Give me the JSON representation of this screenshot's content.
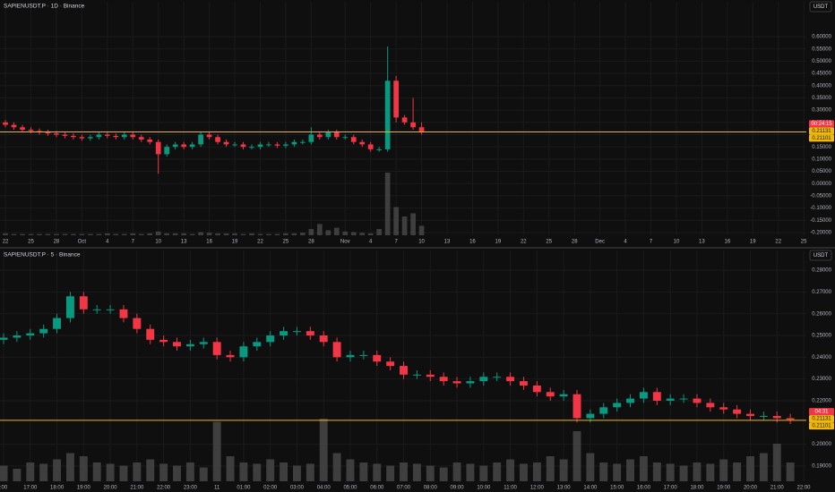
{
  "chart_data": [
    {
      "type": "candlestick",
      "title": "SAPIENUSDT.P · 1D · Binance",
      "currency": "USDT",
      "up_color": "#089981",
      "down_color": "#f23645",
      "volume_color": "#4a4a4a",
      "grid": true,
      "x": [
        0,
        1,
        2,
        3,
        4,
        5,
        6,
        7,
        8,
        9,
        10,
        11,
        12,
        13,
        14,
        15,
        16,
        17,
        18,
        19,
        20,
        21,
        22,
        23,
        24,
        25,
        26,
        27,
        28,
        29,
        30,
        31,
        32,
        33,
        34,
        35,
        36,
        37,
        38,
        39,
        40,
        41,
        42,
        43,
        44,
        45,
        46,
        47,
        48,
        49
      ],
      "open": [
        0.25,
        0.24,
        0.23,
        0.22,
        0.215,
        0.21,
        0.205,
        0.2,
        0.195,
        0.19,
        0.185,
        0.19,
        0.2,
        0.195,
        0.19,
        0.2,
        0.19,
        0.18,
        0.17,
        0.12,
        0.15,
        0.16,
        0.15,
        0.16,
        0.2,
        0.19,
        0.17,
        0.16,
        0.16,
        0.15,
        0.15,
        0.16,
        0.16,
        0.155,
        0.16,
        0.17,
        0.17,
        0.2,
        0.19,
        0.21,
        0.19,
        0.19,
        0.17,
        0.16,
        0.14,
        0.14,
        0.42,
        0.27,
        0.25,
        0.23
      ],
      "high": [
        0.26,
        0.25,
        0.24,
        0.23,
        0.225,
        0.22,
        0.215,
        0.21,
        0.205,
        0.2,
        0.2,
        0.21,
        0.21,
        0.205,
        0.21,
        0.21,
        0.2,
        0.19,
        0.18,
        0.16,
        0.17,
        0.17,
        0.17,
        0.21,
        0.21,
        0.2,
        0.18,
        0.17,
        0.17,
        0.16,
        0.17,
        0.17,
        0.17,
        0.17,
        0.18,
        0.18,
        0.23,
        0.21,
        0.22,
        0.22,
        0.2,
        0.2,
        0.18,
        0.17,
        0.15,
        0.56,
        0.44,
        0.28,
        0.35,
        0.25
      ],
      "low": [
        0.23,
        0.22,
        0.21,
        0.205,
        0.2,
        0.195,
        0.19,
        0.185,
        0.18,
        0.175,
        0.175,
        0.18,
        0.185,
        0.18,
        0.18,
        0.18,
        0.17,
        0.16,
        0.04,
        0.11,
        0.14,
        0.14,
        0.14,
        0.15,
        0.18,
        0.16,
        0.15,
        0.15,
        0.14,
        0.14,
        0.14,
        0.15,
        0.145,
        0.145,
        0.15,
        0.16,
        0.16,
        0.18,
        0.18,
        0.18,
        0.18,
        0.16,
        0.15,
        0.13,
        0.13,
        0.13,
        0.25,
        0.24,
        0.22,
        0.2
      ],
      "close": [
        0.24,
        0.23,
        0.22,
        0.215,
        0.21,
        0.205,
        0.2,
        0.195,
        0.19,
        0.185,
        0.19,
        0.2,
        0.195,
        0.19,
        0.2,
        0.19,
        0.18,
        0.17,
        0.12,
        0.15,
        0.16,
        0.15,
        0.16,
        0.2,
        0.19,
        0.17,
        0.16,
        0.16,
        0.15,
        0.15,
        0.16,
        0.16,
        0.155,
        0.16,
        0.17,
        0.17,
        0.2,
        0.19,
        0.21,
        0.19,
        0.19,
        0.17,
        0.16,
        0.14,
        0.14,
        0.42,
        0.27,
        0.25,
        0.23,
        0.21
      ],
      "volume": [
        3,
        2,
        2,
        2,
        2,
        2,
        2,
        2,
        2,
        2,
        2,
        2,
        3,
        2,
        2,
        3,
        2,
        3,
        6,
        3,
        3,
        3,
        2,
        5,
        4,
        3,
        3,
        3,
        2,
        3,
        2,
        2,
        2,
        3,
        3,
        4,
        10,
        18,
        8,
        12,
        6,
        5,
        4,
        3,
        10,
        100,
        45,
        30,
        35,
        15
      ],
      "xlim": [
        -0.64,
        94.3
      ],
      "xticks": [
        {
          "value": 0,
          "label": "22"
        },
        {
          "value": 3,
          "label": "25"
        },
        {
          "value": 6,
          "label": "28"
        },
        {
          "value": 9,
          "label": "Oct"
        },
        {
          "value": 12,
          "label": "4"
        },
        {
          "value": 15,
          "label": "7"
        },
        {
          "value": 18,
          "label": "10"
        },
        {
          "value": 21,
          "label": "13"
        },
        {
          "value": 24,
          "label": "16"
        },
        {
          "value": 27,
          "label": "19"
        },
        {
          "value": 30,
          "label": "22"
        },
        {
          "value": 33,
          "label": "25"
        },
        {
          "value": 36,
          "label": "28"
        },
        {
          "value": 40,
          "label": "Nov"
        },
        {
          "value": 43,
          "label": "4"
        },
        {
          "value": 46,
          "label": "7"
        },
        {
          "value": 49,
          "label": "10"
        },
        {
          "value": 52,
          "label": "13"
        },
        {
          "value": 55,
          "label": "16"
        },
        {
          "value": 58,
          "label": "19"
        },
        {
          "value": 61,
          "label": "22"
        },
        {
          "value": 64,
          "label": "25"
        },
        {
          "value": 67,
          "label": "28"
        },
        {
          "value": 70,
          "label": "Dec"
        },
        {
          "value": 73,
          "label": "4"
        },
        {
          "value": 76,
          "label": "7"
        },
        {
          "value": 79,
          "label": "10"
        },
        {
          "value": 82,
          "label": "13"
        },
        {
          "value": 85,
          "label": "16"
        },
        {
          "value": 88,
          "label": "19"
        },
        {
          "value": 91,
          "label": "22"
        },
        {
          "value": 94,
          "label": "25"
        }
      ],
      "ylim": [
        -0.211,
        0.7132
      ],
      "yticks": [
        {
          "value": 0.6,
          "label": "0.60000"
        },
        {
          "value": 0.55,
          "label": "0.55000"
        },
        {
          "value": 0.5,
          "label": "0.50000"
        },
        {
          "value": 0.45,
          "label": "0.45000"
        },
        {
          "value": 0.4,
          "label": "0.40000"
        },
        {
          "value": 0.35,
          "label": "0.35000"
        },
        {
          "value": 0.3,
          "label": "0.30000"
        },
        {
          "value": 0.25,
          "label": "0.25000"
        },
        {
          "value": 0.2,
          "label": "0.20000"
        },
        {
          "value": 0.15,
          "label": "0.15000"
        },
        {
          "value": 0.1,
          "label": "0.10000"
        },
        {
          "value": 0.05,
          "label": "0.05000"
        },
        {
          "value": 0,
          "label": "0.00000"
        },
        {
          "value": -0.05,
          "label": "-0.05000"
        },
        {
          "value": -0.1,
          "label": "-0.10000"
        },
        {
          "value": -0.15,
          "label": "-0.15000"
        },
        {
          "value": -0.2,
          "label": "-0.20000"
        }
      ],
      "countdown": "00:24:15",
      "price_lines": [
        {
          "value": 0.21131,
          "label": "0.21131",
          "color": "#f0b90b"
        },
        {
          "value": 0.21101,
          "label": "0.21101",
          "color": "#f0b90b"
        }
      ]
    },
    {
      "type": "candlestick",
      "title": "SAPIENUSDT.P · 5 · Binance",
      "currency": "USDT",
      "up_color": "#089981",
      "down_color": "#f23645",
      "volume_color": "#4a4a4a",
      "grid": true,
      "x": [
        0,
        0.5,
        1,
        1.5,
        2,
        2.5,
        3,
        3.5,
        4,
        4.5,
        5,
        5.5,
        6,
        6.5,
        7,
        7.5,
        8,
        8.5,
        9,
        9.5,
        10,
        10.5,
        11,
        11.5,
        12,
        12.5,
        13,
        13.5,
        14,
        14.5,
        15,
        15.5,
        16,
        16.5,
        17,
        17.5,
        18,
        18.5,
        19,
        19.5,
        20,
        20.5,
        21,
        21.5,
        22,
        22.5,
        23,
        23.5,
        24,
        24.5,
        25,
        25.5,
        26,
        26.5,
        27,
        27.5,
        28,
        28.5,
        29,
        29.5
      ],
      "open": [
        0.248,
        0.249,
        0.25,
        0.251,
        0.253,
        0.258,
        0.268,
        0.262,
        0.262,
        0.262,
        0.258,
        0.253,
        0.248,
        0.247,
        0.245,
        0.246,
        0.247,
        0.241,
        0.24,
        0.245,
        0.247,
        0.25,
        0.252,
        0.252,
        0.25,
        0.247,
        0.24,
        0.241,
        0.241,
        0.238,
        0.236,
        0.232,
        0.232,
        0.231,
        0.229,
        0.228,
        0.229,
        0.231,
        0.231,
        0.229,
        0.227,
        0.224,
        0.222,
        0.223,
        0.212,
        0.214,
        0.217,
        0.219,
        0.221,
        0.224,
        0.22,
        0.221,
        0.221,
        0.219,
        0.217,
        0.216,
        0.214,
        0.213,
        0.213,
        0.212
      ],
      "high": [
        0.251,
        0.252,
        0.253,
        0.255,
        0.26,
        0.27,
        0.27,
        0.264,
        0.264,
        0.264,
        0.26,
        0.255,
        0.25,
        0.249,
        0.248,
        0.249,
        0.249,
        0.243,
        0.247,
        0.249,
        0.252,
        0.254,
        0.254,
        0.254,
        0.252,
        0.249,
        0.243,
        0.243,
        0.243,
        0.24,
        0.238,
        0.234,
        0.234,
        0.233,
        0.231,
        0.231,
        0.233,
        0.233,
        0.233,
        0.231,
        0.229,
        0.226,
        0.225,
        0.225,
        0.216,
        0.219,
        0.221,
        0.223,
        0.226,
        0.226,
        0.223,
        0.223,
        0.223,
        0.221,
        0.219,
        0.218,
        0.216,
        0.215,
        0.215,
        0.214
      ],
      "low": [
        0.246,
        0.247,
        0.248,
        0.249,
        0.251,
        0.256,
        0.26,
        0.26,
        0.26,
        0.256,
        0.251,
        0.246,
        0.245,
        0.243,
        0.243,
        0.244,
        0.239,
        0.238,
        0.238,
        0.243,
        0.245,
        0.248,
        0.25,
        0.248,
        0.245,
        0.238,
        0.238,
        0.239,
        0.236,
        0.234,
        0.23,
        0.23,
        0.229,
        0.227,
        0.226,
        0.226,
        0.227,
        0.229,
        0.227,
        0.225,
        0.222,
        0.22,
        0.22,
        0.21,
        0.21,
        0.212,
        0.215,
        0.217,
        0.219,
        0.218,
        0.218,
        0.219,
        0.217,
        0.215,
        0.214,
        0.212,
        0.211,
        0.211,
        0.21,
        0.2093
      ],
      "close": [
        0.249,
        0.25,
        0.251,
        0.253,
        0.258,
        0.268,
        0.262,
        0.262,
        0.262,
        0.258,
        0.253,
        0.248,
        0.247,
        0.245,
        0.246,
        0.247,
        0.241,
        0.24,
        0.245,
        0.247,
        0.25,
        0.252,
        0.252,
        0.25,
        0.247,
        0.24,
        0.241,
        0.241,
        0.238,
        0.236,
        0.232,
        0.232,
        0.231,
        0.229,
        0.228,
        0.229,
        0.231,
        0.231,
        0.229,
        0.227,
        0.224,
        0.222,
        0.223,
        0.212,
        0.214,
        0.217,
        0.219,
        0.221,
        0.224,
        0.22,
        0.221,
        0.221,
        0.219,
        0.217,
        0.216,
        0.214,
        0.213,
        0.213,
        0.212,
        0.2113
      ],
      "volume": [
        25,
        20,
        30,
        28,
        35,
        45,
        40,
        30,
        28,
        25,
        30,
        35,
        28,
        25,
        30,
        22,
        95,
        40,
        30,
        28,
        35,
        30,
        25,
        28,
        100,
        45,
        35,
        30,
        28,
        25,
        30,
        28,
        25,
        22,
        30,
        28,
        25,
        30,
        35,
        28,
        30,
        40,
        35,
        80,
        45,
        30,
        28,
        35,
        40,
        30,
        28,
        25,
        30,
        28,
        35,
        30,
        40,
        45,
        60,
        30
      ],
      "xlim": [
        -0.135,
        30.1
      ],
      "xticks": [
        {
          "value": 0,
          "label": ":00"
        },
        {
          "value": 1,
          "label": "17:00"
        },
        {
          "value": 2,
          "label": "18:00"
        },
        {
          "value": 3,
          "label": "19:00"
        },
        {
          "value": 4,
          "label": "20:00"
        },
        {
          "value": 5,
          "label": "21:00"
        },
        {
          "value": 6,
          "label": "22:00"
        },
        {
          "value": 7,
          "label": "23:00"
        },
        {
          "value": 8,
          "label": "11"
        },
        {
          "value": 9,
          "label": "01:00"
        },
        {
          "value": 10,
          "label": "02:00"
        },
        {
          "value": 11,
          "label": "03:00"
        },
        {
          "value": 12,
          "label": "04:00"
        },
        {
          "value": 13,
          "label": "05:00"
        },
        {
          "value": 14,
          "label": "06:00"
        },
        {
          "value": 15,
          "label": "07:00"
        },
        {
          "value": 16,
          "label": "08:00"
        },
        {
          "value": 17,
          "label": "09:00"
        },
        {
          "value": 18,
          "label": "10:00"
        },
        {
          "value": 19,
          "label": "11:00"
        },
        {
          "value": 20,
          "label": "12:00"
        },
        {
          "value": 21,
          "label": "13:00"
        },
        {
          "value": 22,
          "label": "14:00"
        },
        {
          "value": 23,
          "label": "15:00"
        },
        {
          "value": 24,
          "label": "16:00"
        },
        {
          "value": 25,
          "label": "17:00"
        },
        {
          "value": 26,
          "label": "18:00"
        },
        {
          "value": 27,
          "label": "19:00"
        },
        {
          "value": 28,
          "label": "20:00"
        },
        {
          "value": 29,
          "label": "21:00"
        },
        {
          "value": 30,
          "label": "22:00"
        }
      ],
      "ylim": [
        0.183,
        0.287
      ],
      "yticks": [
        {
          "value": 0.28,
          "label": "0.28000"
        },
        {
          "value": 0.27,
          "label": "0.27000"
        },
        {
          "value": 0.26,
          "label": "0.26000"
        },
        {
          "value": 0.25,
          "label": "0.25000"
        },
        {
          "value": 0.24,
          "label": "0.24000"
        },
        {
          "value": 0.23,
          "label": "0.23000"
        },
        {
          "value": 0.22,
          "label": "0.22000"
        },
        {
          "value": 0.2,
          "label": "0.20000"
        },
        {
          "value": 0.19,
          "label": "0.19000"
        }
      ],
      "countdown": "04:31",
      "price_lines": [
        {
          "value": 0.21131,
          "label": "0.21131",
          "color": "#f0b90b"
        },
        {
          "value": 0.21101,
          "label": "0.21101",
          "color": "#f0b90b"
        }
      ]
    }
  ]
}
